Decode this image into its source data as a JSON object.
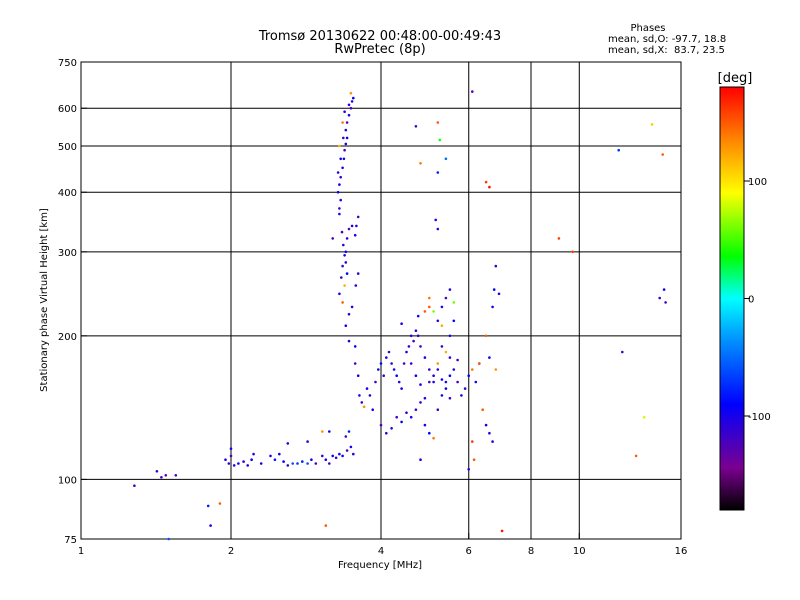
{
  "chart_data": {
    "type": "scatter",
    "title": "Tromsø 20130622 00:48:00-00:49:43",
    "subtitle": "RwPretec (8p)",
    "xlabel": "Frequency [MHz]",
    "ylabel": "Stationary phase Virtual Height [km]",
    "x_scale": "log",
    "y_scale": "log",
    "xlim": [
      1,
      16
    ],
    "ylim": [
      75,
      750
    ],
    "x_ticks": [
      1,
      2,
      4,
      6,
      8,
      10,
      16
    ],
    "x_tick_labels": [
      "1",
      "2",
      "4",
      "6",
      "8",
      "10",
      "16"
    ],
    "y_ticks": [
      75,
      100,
      200,
      300,
      400,
      500,
      600,
      750
    ],
    "y_tick_labels": [
      "75",
      "100",
      "200",
      "300",
      "400",
      "500",
      "600",
      "750"
    ],
    "grid": true,
    "phases": {
      "title": "Phases",
      "line_o": "mean, sd,O: -97.7, 18.8",
      "line_x": "mean, sd,X:  83.7, 23.5"
    },
    "colorbar": {
      "label": "[deg]",
      "range": [
        -180,
        180
      ],
      "ticks": [
        -100,
        0,
        100
      ],
      "tick_labels": [
        "-100",
        "0",
        "100"
      ]
    },
    "points": [
      [
        1.28,
        97,
        -120
      ],
      [
        1.42,
        104,
        -110
      ],
      [
        1.45,
        101,
        -120
      ],
      [
        1.48,
        102,
        -130
      ],
      [
        1.55,
        102,
        -120
      ],
      [
        1.5,
        75,
        -60
      ],
      [
        1.8,
        88,
        -80
      ],
      [
        1.82,
        80,
        -100
      ],
      [
        1.9,
        89,
        150
      ],
      [
        1.95,
        110,
        -100
      ],
      [
        1.98,
        108,
        -110
      ],
      [
        2.0,
        112,
        -120
      ],
      [
        2.03,
        107,
        -100
      ],
      [
        2.07,
        108,
        -90
      ],
      [
        2.12,
        109,
        -110
      ],
      [
        2.16,
        107,
        -100
      ],
      [
        2.2,
        110,
        -90
      ],
      [
        2.3,
        108,
        -100
      ],
      [
        2.45,
        110,
        -80
      ],
      [
        2.5,
        113,
        -100
      ],
      [
        2.55,
        109,
        -90
      ],
      [
        2.6,
        107,
        -110
      ],
      [
        2.66,
        108,
        -60
      ],
      [
        2.72,
        108,
        -70
      ],
      [
        2.78,
        109,
        -80
      ],
      [
        2.85,
        108,
        -60
      ],
      [
        2.9,
        110,
        -100
      ],
      [
        2.96,
        108,
        -120
      ],
      [
        3.05,
        112,
        -110
      ],
      [
        3.1,
        110,
        -100
      ],
      [
        3.15,
        108,
        -120
      ],
      [
        3.2,
        112,
        -90
      ],
      [
        3.25,
        111,
        -110
      ],
      [
        3.3,
        113,
        -100
      ],
      [
        3.35,
        112,
        -90
      ],
      [
        3.42,
        115,
        -120
      ],
      [
        3.48,
        117,
        -100
      ],
      [
        3.52,
        113,
        -110
      ],
      [
        2.6,
        119,
        -100
      ],
      [
        2.85,
        120,
        -110
      ],
      [
        3.05,
        126,
        130
      ],
      [
        3.15,
        126,
        -100
      ],
      [
        3.4,
        123,
        -120
      ],
      [
        3.45,
        126,
        -80
      ],
      [
        3.1,
        80,
        150
      ],
      [
        2.0,
        116,
        -100
      ],
      [
        2.22,
        113,
        -110
      ],
      [
        2.4,
        112,
        -100
      ],
      [
        3.3,
        245,
        -100
      ],
      [
        3.33,
        265,
        -110
      ],
      [
        3.35,
        280,
        -120
      ],
      [
        3.38,
        295,
        -100
      ],
      [
        3.4,
        300,
        -90
      ],
      [
        3.42,
        320,
        -110
      ],
      [
        3.45,
        335,
        -130
      ],
      [
        3.5,
        340,
        -100
      ],
      [
        3.3,
        370,
        -120
      ],
      [
        3.32,
        385,
        -110
      ],
      [
        3.28,
        400,
        -90
      ],
      [
        3.3,
        415,
        -100
      ],
      [
        3.32,
        430,
        -120
      ],
      [
        3.35,
        450,
        -110
      ],
      [
        3.37,
        470,
        -100
      ],
      [
        3.38,
        490,
        -120
      ],
      [
        3.4,
        505,
        -100
      ],
      [
        3.42,
        520,
        -90
      ],
      [
        3.4,
        540,
        -110
      ],
      [
        3.42,
        560,
        -130
      ],
      [
        3.45,
        580,
        -100
      ],
      [
        3.48,
        600,
        -120
      ],
      [
        3.5,
        620,
        -110
      ],
      [
        3.52,
        630,
        -90
      ],
      [
        3.48,
        645,
        130
      ],
      [
        3.45,
        610,
        -100
      ],
      [
        3.38,
        590,
        -110
      ],
      [
        3.35,
        560,
        140
      ],
      [
        3.36,
        520,
        -120
      ],
      [
        3.3,
        500,
        120
      ],
      [
        3.32,
        470,
        -100
      ],
      [
        3.28,
        440,
        -110
      ],
      [
        3.3,
        360,
        -100
      ],
      [
        3.34,
        330,
        -120
      ],
      [
        3.36,
        310,
        -110
      ],
      [
        3.4,
        285,
        -100
      ],
      [
        3.42,
        270,
        -90
      ],
      [
        3.38,
        255,
        120
      ],
      [
        3.35,
        235,
        150
      ],
      [
        3.45,
        222,
        -110
      ],
      [
        3.5,
        230,
        -100
      ],
      [
        3.2,
        320,
        -120
      ],
      [
        3.55,
        325,
        -100
      ],
      [
        3.57,
        340,
        -110
      ],
      [
        3.6,
        355,
        -120
      ],
      [
        3.6,
        270,
        -110
      ],
      [
        3.56,
        255,
        -100
      ],
      [
        3.4,
        210,
        -100
      ],
      [
        3.45,
        195,
        -110
      ],
      [
        3.55,
        190,
        -90
      ],
      [
        3.55,
        175,
        -120
      ],
      [
        3.6,
        165,
        -100
      ],
      [
        3.62,
        150,
        -110
      ],
      [
        3.66,
        145,
        -120
      ],
      [
        3.7,
        142,
        130
      ],
      [
        3.75,
        155,
        -100
      ],
      [
        3.8,
        150,
        -110
      ],
      [
        3.85,
        140,
        -100
      ],
      [
        3.9,
        160,
        -120
      ],
      [
        3.95,
        170,
        -100
      ],
      [
        4.0,
        175,
        -90
      ],
      [
        4.05,
        165,
        -110
      ],
      [
        4.1,
        180,
        -100
      ],
      [
        4.15,
        185,
        -120
      ],
      [
        4.2,
        175,
        -110
      ],
      [
        4.25,
        170,
        -100
      ],
      [
        4.3,
        165,
        -90
      ],
      [
        4.35,
        160,
        -110
      ],
      [
        4.4,
        155,
        -100
      ],
      [
        4.45,
        175,
        -120
      ],
      [
        4.5,
        185,
        -100
      ],
      [
        4.55,
        190,
        -110
      ],
      [
        4.6,
        200,
        -100
      ],
      [
        4.65,
        195,
        -120
      ],
      [
        4.7,
        205,
        -110
      ],
      [
        4.75,
        200,
        -100
      ],
      [
        4.8,
        190,
        -120
      ],
      [
        4.9,
        180,
        -100
      ],
      [
        5.0,
        170,
        -110
      ],
      [
        5.1,
        160,
        -100
      ],
      [
        5.2,
        175,
        130
      ],
      [
        5.3,
        190,
        -110
      ],
      [
        5.4,
        185,
        120
      ],
      [
        5.5,
        200,
        -100
      ],
      [
        5.6,
        215,
        -90
      ],
      [
        5.7,
        160,
        -120
      ],
      [
        5.8,
        150,
        -100
      ],
      [
        5.9,
        155,
        -110
      ],
      [
        6.0,
        165,
        -90
      ],
      [
        6.1,
        170,
        140
      ],
      [
        6.2,
        160,
        -100
      ],
      [
        6.3,
        175,
        -110
      ],
      [
        6.4,
        140,
        150
      ],
      [
        6.5,
        130,
        -100
      ],
      [
        6.6,
        125,
        -110
      ],
      [
        6.7,
        120,
        -100
      ],
      [
        4.0,
        130,
        -120
      ],
      [
        4.1,
        125,
        -110
      ],
      [
        4.2,
        128,
        -100
      ],
      [
        4.3,
        135,
        -120
      ],
      [
        4.4,
        132,
        -90
      ],
      [
        4.5,
        138,
        -110
      ],
      [
        4.6,
        135,
        -100
      ],
      [
        4.7,
        140,
        -120
      ],
      [
        4.8,
        145,
        -110
      ],
      [
        4.9,
        130,
        -100
      ],
      [
        5.0,
        125,
        -90
      ],
      [
        5.1,
        122,
        140
      ],
      [
        5.2,
        140,
        -120
      ],
      [
        5.3,
        150,
        -100
      ],
      [
        5.4,
        160,
        -110
      ],
      [
        5.5,
        165,
        -90
      ],
      [
        5.6,
        170,
        -100
      ],
      [
        5.7,
        178,
        -120
      ],
      [
        4.75,
        220,
        -100
      ],
      [
        4.9,
        225,
        150
      ],
      [
        5.0,
        230,
        150
      ],
      [
        5.1,
        225,
        60
      ],
      [
        5.2,
        215,
        -110
      ],
      [
        5.3,
        230,
        -100
      ],
      [
        5.4,
        240,
        -120
      ],
      [
        5.5,
        250,
        -110
      ],
      [
        5.6,
        235,
        60
      ],
      [
        5.3,
        210,
        120
      ],
      [
        4.4,
        212,
        -100
      ],
      [
        4.6,
        175,
        -110
      ],
      [
        4.7,
        165,
        -90
      ],
      [
        4.8,
        158,
        -100
      ],
      [
        4.9,
        148,
        -110
      ],
      [
        5.0,
        160,
        -120
      ],
      [
        5.1,
        165,
        -100
      ],
      [
        5.2,
        170,
        -110
      ],
      [
        5.3,
        162,
        -90
      ],
      [
        5.4,
        155,
        -100
      ],
      [
        5.5,
        148,
        -120
      ],
      [
        4.8,
        110,
        -100
      ],
      [
        5.5,
        180,
        -110
      ],
      [
        6.3,
        175,
        150
      ],
      [
        6.5,
        200,
        150
      ],
      [
        6.6,
        180,
        -100
      ],
      [
        6.8,
        170,
        130
      ],
      [
        5.2,
        560,
        150
      ],
      [
        5.25,
        515,
        40
      ],
      [
        5.2,
        440,
        -80
      ],
      [
        5.15,
        350,
        -100
      ],
      [
        5.2,
        335,
        -110
      ],
      [
        4.7,
        550,
        -120
      ],
      [
        4.8,
        460,
        140
      ],
      [
        5.4,
        470,
        -50
      ],
      [
        6.1,
        650,
        -130
      ],
      [
        6.5,
        420,
        160
      ],
      [
        6.6,
        410,
        175
      ],
      [
        6.7,
        230,
        -100
      ],
      [
        6.75,
        250,
        -90
      ],
      [
        6.8,
        280,
        -110
      ],
      [
        6.9,
        245,
        -100
      ],
      [
        7.0,
        78,
        175
      ],
      [
        9.1,
        320,
        160
      ],
      [
        9.7,
        300,
        160
      ],
      [
        12.0,
        490,
        -70
      ],
      [
        12.2,
        185,
        -120
      ],
      [
        14.5,
        240,
        -110
      ],
      [
        14.8,
        250,
        -100
      ],
      [
        14.9,
        235,
        -120
      ],
      [
        14.7,
        480,
        150
      ],
      [
        14.0,
        555,
        110
      ],
      [
        13.5,
        135,
        80
      ],
      [
        13.0,
        112,
        150
      ],
      [
        6.1,
        120,
        160
      ],
      [
        6.15,
        110,
        150
      ],
      [
        5.0,
        240,
        140
      ],
      [
        6.0,
        105,
        -100
      ]
    ]
  }
}
